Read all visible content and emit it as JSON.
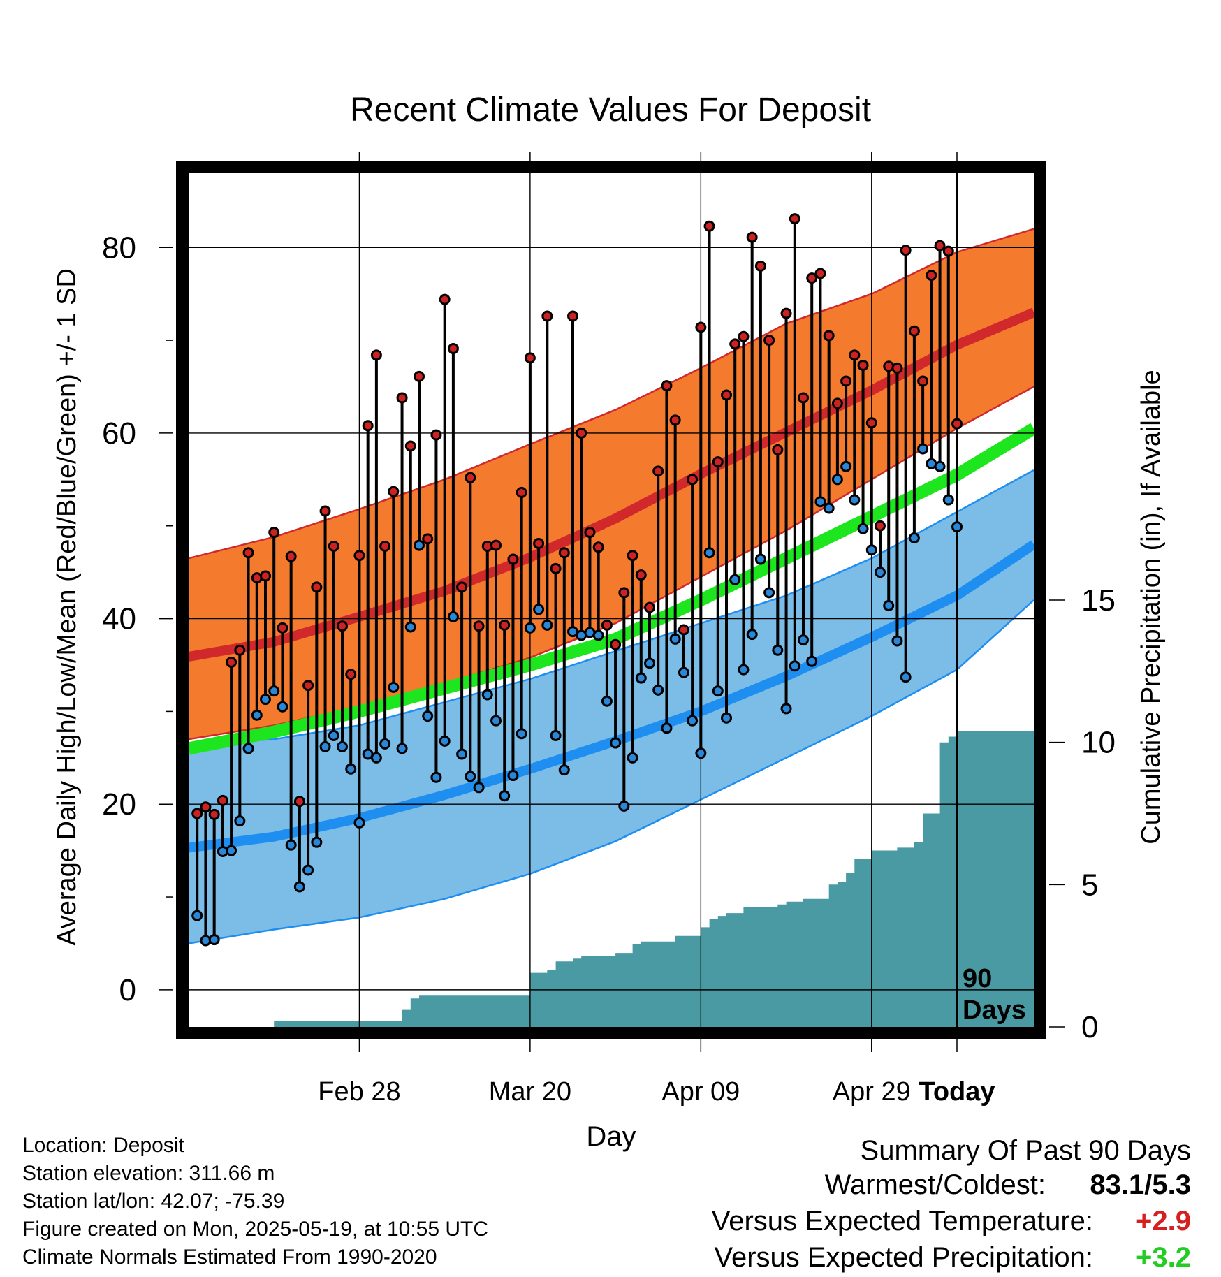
{
  "title": "Recent Climate Values For Deposit",
  "colors": {
    "high_band": "#f47b2e",
    "high_mean_line": "#d0282b",
    "low_band": "#7bbde6",
    "low_mean_line": "#1e8ef0",
    "mean_line": "#1ee61e",
    "precip_fill": "#4a9aa3",
    "high_marker": "#cc2222",
    "low_marker": "#2a86d6",
    "positive_temp": "#d42020",
    "positive_precip": "#22cc22"
  },
  "chart_data": {
    "type": "line",
    "title": "Recent Climate Values For Deposit",
    "xlabel": "Day",
    "ylabel": "Average Daily High/Low/Mean (Red/Blue/Green) +/- 1 SD",
    "y2label": "Cumulative Precipitation (in), If Available",
    "ylim": [
      -4,
      88
    ],
    "y2lim": [
      0,
      30
    ],
    "yticks": [
      0,
      20,
      40,
      60,
      80
    ],
    "y2ticks": [
      0,
      5,
      10,
      15
    ],
    "xlim": [
      -90,
      9
    ],
    "xtick_positions": [
      -70,
      -50,
      -30,
      -10,
      0
    ],
    "xtick_labels": [
      "Feb 28",
      "Mar 20",
      "Apr 09",
      "Apr 29",
      "Today"
    ],
    "today_marker_label": [
      "90",
      "Days"
    ],
    "grid": true,
    "normals_x": [
      -90,
      -80,
      -70,
      -60,
      -50,
      -40,
      -30,
      -20,
      -10,
      0,
      9
    ],
    "normal_high_mean": [
      35.9,
      37.5,
      40.2,
      43.0,
      46.6,
      50.8,
      55.6,
      60.1,
      64.6,
      69.5,
      73.0
    ],
    "normal_high_upper": [
      46.5,
      48.8,
      51.8,
      55.0,
      58.8,
      62.5,
      67.0,
      71.8,
      75.0,
      79.5,
      82.0
    ],
    "normal_high_lower": [
      27.0,
      28.5,
      30.5,
      33.0,
      35.8,
      39.5,
      44.5,
      49.5,
      55.0,
      60.5,
      65.0
    ],
    "normal_mean": [
      26.0,
      27.8,
      30.0,
      32.5,
      35.0,
      37.8,
      42.0,
      46.5,
      51.0,
      55.5,
      60.5
    ],
    "normal_low_mean": [
      15.3,
      16.5,
      18.5,
      21.0,
      23.8,
      26.8,
      30.0,
      33.8,
      38.0,
      42.5,
      48.0
    ],
    "normal_low_upper": [
      26.5,
      27.0,
      28.5,
      31.0,
      33.5,
      36.5,
      39.5,
      42.5,
      46.5,
      51.5,
      56.0
    ],
    "normal_low_lower": [
      5.0,
      6.5,
      7.8,
      9.8,
      12.5,
      16.0,
      20.5,
      25.0,
      29.5,
      34.5,
      42.0
    ],
    "days": [
      -89,
      -88,
      -87,
      -86,
      -85,
      -84,
      -83,
      -82,
      -81,
      -80,
      -79,
      -78,
      -77,
      -76,
      -75,
      -74,
      -73,
      -72,
      -71,
      -70,
      -69,
      -68,
      -67,
      -66,
      -65,
      -64,
      -63,
      -62,
      -61,
      -60,
      -59,
      -58,
      -57,
      -56,
      -55,
      -54,
      -53,
      -52,
      -51,
      -50,
      -49,
      -48,
      -47,
      -46,
      -45,
      -44,
      -43,
      -42,
      -41,
      -40,
      -39,
      -38,
      -37,
      -36,
      -35,
      -34,
      -33,
      -32,
      -31,
      -30,
      -29,
      -28,
      -27,
      -26,
      -25,
      -24,
      -23,
      -22,
      -21,
      -20,
      -19,
      -18,
      -17,
      -16,
      -15,
      -14,
      -13,
      -12,
      -11,
      -10,
      -9,
      -8,
      -7,
      -6,
      -5,
      -4,
      -3,
      -2,
      -1,
      0
    ],
    "daily_high": [
      19.0,
      19.7,
      18.9,
      20.4,
      35.3,
      36.6,
      47.1,
      44.4,
      44.6,
      49.3,
      39.0,
      46.7,
      20.3,
      32.8,
      43.4,
      51.6,
      47.8,
      39.2,
      34.0,
      46.8,
      60.8,
      68.4,
      47.8,
      53.7,
      63.8,
      58.6,
      66.1,
      48.6,
      59.8,
      74.4,
      69.1,
      43.4,
      55.2,
      39.2,
      47.8,
      47.9,
      39.3,
      46.4,
      53.6,
      68.1,
      48.1,
      72.6,
      45.4,
      47.1,
      72.6,
      60.0,
      49.3,
      47.7,
      39.3,
      37.2,
      42.8,
      46.8,
      44.7,
      41.2,
      55.9,
      65.1,
      61.4,
      38.8,
      55.0,
      71.4,
      82.3,
      56.9,
      64.1,
      69.6,
      70.4,
      81.1,
      78.0,
      70.0,
      58.2,
      72.9,
      83.1,
      63.8,
      76.7,
      77.2,
      70.5,
      63.2,
      65.6,
      68.4,
      67.3,
      61.1,
      50.0,
      67.2,
      67.0,
      79.7,
      71.0,
      65.6,
      77.0,
      80.2,
      79.6,
      61.0
    ],
    "daily_low": [
      8.0,
      5.3,
      5.4,
      14.9,
      15.0,
      18.2,
      26.0,
      29.6,
      31.3,
      32.2,
      30.5,
      15.6,
      11.1,
      12.9,
      15.9,
      26.2,
      27.4,
      26.2,
      23.8,
      18.0,
      25.4,
      25.0,
      26.5,
      32.6,
      26.0,
      39.1,
      47.9,
      29.5,
      22.9,
      26.8,
      40.2,
      25.4,
      23.0,
      21.8,
      31.8,
      29.0,
      20.9,
      23.1,
      27.6,
      39.0,
      41.0,
      39.3,
      27.4,
      23.7,
      38.6,
      38.2,
      38.5,
      38.2,
      31.1,
      26.6,
      19.8,
      25.0,
      33.6,
      35.2,
      32.3,
      28.2,
      37.8,
      34.2,
      29.0,
      25.5,
      47.1,
      32.2,
      29.3,
      44.2,
      34.5,
      38.3,
      46.4,
      42.8,
      36.6,
      30.3,
      34.9,
      37.7,
      35.4,
      52.6,
      51.9,
      55.0,
      56.4,
      52.8,
      49.7,
      47.4,
      45.0,
      41.4,
      37.6,
      33.7,
      48.7,
      58.3,
      56.7,
      56.4,
      52.8,
      49.9
    ],
    "precip_days": [
      -90,
      -81,
      -80,
      -73,
      -72,
      -71,
      -66,
      -65,
      -64,
      -63,
      -62,
      -61,
      -60,
      -59,
      -58,
      -57,
      -56,
      -55,
      -54,
      -53,
      -51,
      -50,
      -49,
      -48,
      -47,
      -46,
      -45,
      -44,
      -43,
      -42,
      -41,
      -40,
      -39,
      -38,
      -37,
      -36,
      -35,
      -34,
      -33,
      -32,
      -31,
      -30,
      -29,
      -28,
      -27,
      -26,
      -25,
      -24,
      -23,
      -22,
      -21,
      -20,
      -19,
      -18,
      -17,
      -16,
      -15,
      -14,
      -13,
      -12,
      -11,
      -10,
      -9,
      -8,
      -7,
      -6,
      -5,
      -4,
      -3,
      -2,
      -1,
      0,
      9
    ],
    "cumulative_precip": [
      0.0,
      0.0,
      0.2,
      0.2,
      0.2,
      0.2,
      0.2,
      0.6,
      1.0,
      1.1,
      1.1,
      1.1,
      1.1,
      1.1,
      1.1,
      1.1,
      1.1,
      1.1,
      1.1,
      1.1,
      1.1,
      1.9,
      1.9,
      2.0,
      2.3,
      2.3,
      2.4,
      2.5,
      2.5,
      2.5,
      2.5,
      2.6,
      2.6,
      2.9,
      3.0,
      3.0,
      3.0,
      3.0,
      3.2,
      3.2,
      3.2,
      3.5,
      3.8,
      3.9,
      4.0,
      4.0,
      4.2,
      4.2,
      4.2,
      4.2,
      4.3,
      4.4,
      4.4,
      4.5,
      4.5,
      4.5,
      5.0,
      5.1,
      5.4,
      5.9,
      5.9,
      6.2,
      6.2,
      6.2,
      6.3,
      6.3,
      6.5,
      7.5,
      7.5,
      10.0,
      10.2,
      10.4,
      12.6
    ]
  },
  "footer": {
    "location": "Location: Deposit",
    "elevation": "Station elevation: 311.66 m",
    "latlon": "Station lat/lon: 42.07; -75.39",
    "created": "Figure created on Mon, 2025-05-19, at 10:55 UTC",
    "normals": "Climate Normals Estimated From 1990-2020"
  },
  "summary": {
    "heading": "Summary Of Past 90 Days",
    "warmest_coldest_label": "Warmest/Coldest:",
    "warmest_coldest_value": "83.1/5.3",
    "temp_label": "Versus Expected Temperature:",
    "temp_value": "+2.9",
    "precip_label": "Versus Expected Precipitation:",
    "precip_value": "+3.2"
  }
}
